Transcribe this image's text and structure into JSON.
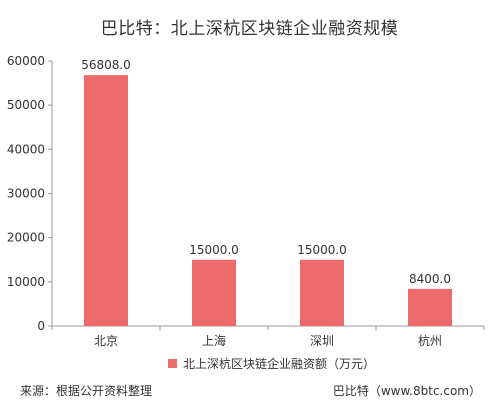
{
  "chart_data": {
    "type": "bar",
    "title": "巴比特：北上深杭区块链企业融资规模",
    "categories": [
      "北京",
      "上海",
      "深圳",
      "杭州"
    ],
    "series": [
      {
        "name": "北上深杭区块链企业融资额（万元）",
        "values": [
          56808.0,
          15000.0,
          15000.0,
          8400.0
        ]
      }
    ],
    "data_labels": [
      "56808.0",
      "15000.0",
      "15000.0",
      "8400.0"
    ],
    "y_ticks": [
      "0",
      "10000",
      "20000",
      "30000",
      "40000",
      "50000",
      "60000"
    ],
    "ylim": [
      0,
      60000
    ],
    "grid": false,
    "legend_position": "bottom",
    "bar_color": "#ee6b6b"
  },
  "footer": {
    "source": "来源：根据公开资料整理",
    "brand": "巴比特（www.8btc.com）"
  }
}
